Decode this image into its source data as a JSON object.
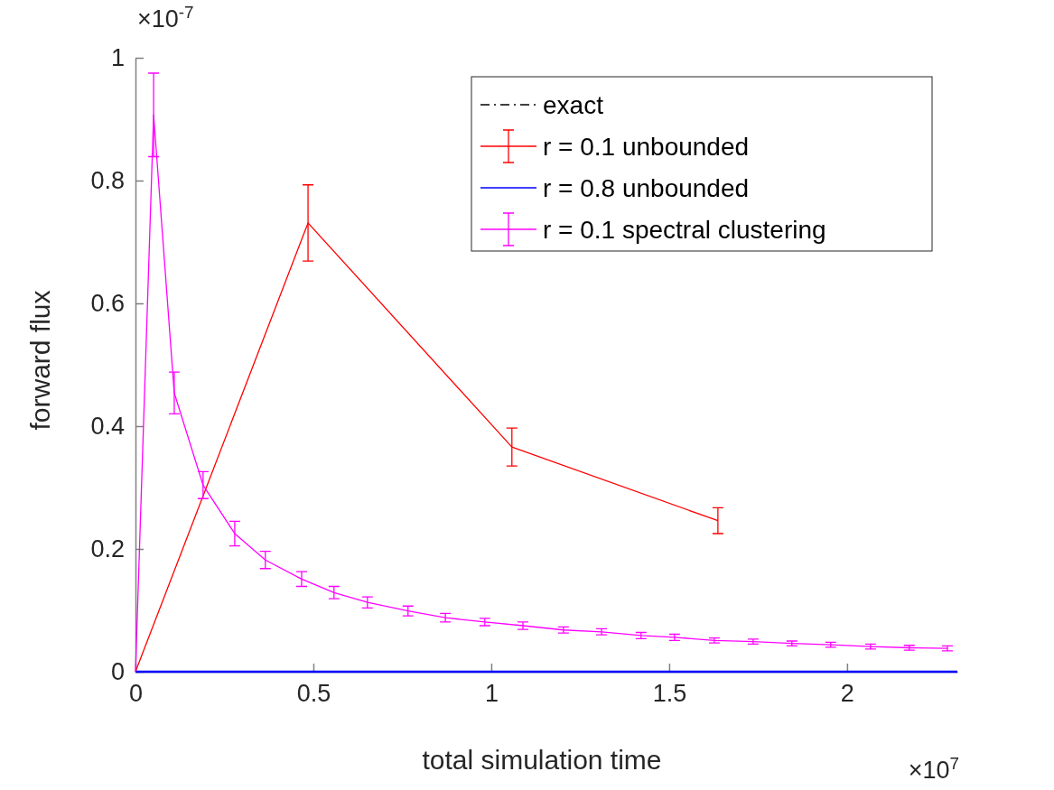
{
  "chart_data": {
    "type": "line",
    "xlabel": "total simulation time",
    "ylabel": "forward flux",
    "annotations": [
      "×10$^{-7}$",
      "×10$^{7}$"
    ],
    "xlim": [
      0,
      2.31
    ],
    "xticks": [
      0,
      0.5,
      1,
      1.5,
      2
    ],
    "ylim": [
      0,
      1
    ],
    "yticks": [
      0,
      0.2,
      0.4,
      0.6,
      0.8,
      1
    ],
    "legend": "top right",
    "grid": false,
    "marker": "none",
    "series": [
      {
        "name": "exact",
        "color": "#000000",
        "line_style": "dashed"
      },
      {
        "name": "r = 0.1 unbounded",
        "color": "#ff0000",
        "x": [
          0,
          0.485,
          1.058,
          1.637
        ],
        "values": [
          0,
          0.731,
          0.366,
          0.246
        ],
        "errors": [
          null,
          0.062,
          0.031,
          0.021
        ]
      },
      {
        "name": "r = 0.8 unbounded",
        "color": "#0000ff",
        "x": [
          0,
          2.31
        ],
        "values": [
          0,
          0
        ]
      },
      {
        "name": "r = 0.1 spectral clustering",
        "color": "#ff00ff",
        "x": [
          0,
          0.051,
          0.109,
          0.19,
          0.279,
          0.365,
          0.467,
          0.558,
          0.652,
          0.766,
          0.871,
          0.982,
          1.089,
          1.203,
          1.31,
          1.421,
          1.515,
          1.627,
          1.736,
          1.845,
          1.954,
          2.066,
          2.175,
          2.282
        ],
        "values": [
          0,
          0.907,
          0.454,
          0.304,
          0.225,
          0.182,
          0.151,
          0.129,
          0.113,
          0.099,
          0.088,
          0.081,
          0.075,
          0.068,
          0.065,
          0.059,
          0.056,
          0.051,
          0.049,
          0.046,
          0.044,
          0.041,
          0.039,
          0.038
        ],
        "errors": [
          null,
          0.068,
          0.034,
          0.022,
          0.02,
          0.014,
          0.012,
          0.01,
          0.009,
          0.008,
          0.007,
          0.006,
          0.006,
          0.005,
          0.005,
          0.005,
          0.005,
          0.004,
          0.004,
          0.004,
          0.004,
          0.004,
          0.004,
          0.004
        ]
      }
    ]
  }
}
